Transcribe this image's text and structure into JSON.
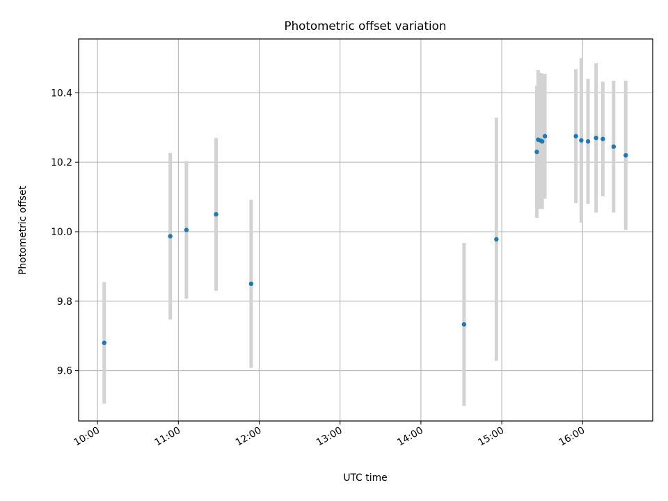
{
  "chart_data": {
    "type": "scatter",
    "title": "Photometric offset variation",
    "xlabel": "UTC time",
    "ylabel": "Photometric offset",
    "x_unit": "time of day (HH:MM)",
    "xlim": [
      "09:46",
      "16:52"
    ],
    "ylim": [
      9.455,
      10.555
    ],
    "grid": true,
    "x_ticks": [
      "10:00",
      "11:00",
      "12:00",
      "13:00",
      "14:00",
      "15:00",
      "16:00"
    ],
    "y_ticks": [
      "9.6",
      "9.8",
      "10.0",
      "10.2",
      "10.4"
    ],
    "point_color": "#1f77b4",
    "errorbar_color": "#d3d3d3",
    "points": [
      {
        "x": "10:05",
        "y": 9.68,
        "err": 0.175
      },
      {
        "x": "10:54",
        "y": 9.987,
        "err": 0.24
      },
      {
        "x": "11:06",
        "y": 10.005,
        "err": 0.198
      },
      {
        "x": "11:28",
        "y": 10.05,
        "err": 0.22
      },
      {
        "x": "11:54",
        "y": 9.85,
        "err": 0.242
      },
      {
        "x": "14:32",
        "y": 9.733,
        "err": 0.235
      },
      {
        "x": "14:56",
        "y": 9.978,
        "err": 0.35
      },
      {
        "x": "15:26",
        "y": 10.23,
        "err": 0.19
      },
      {
        "x": "15:27",
        "y": 10.265,
        "err": 0.2
      },
      {
        "x": "15:29",
        "y": 10.262,
        "err": 0.195
      },
      {
        "x": "15:30",
        "y": 10.26,
        "err": 0.195
      },
      {
        "x": "15:32",
        "y": 10.275,
        "err": 0.18
      },
      {
        "x": "15:55",
        "y": 10.275,
        "err": 0.193
      },
      {
        "x": "15:59",
        "y": 10.263,
        "err": 0.237
      },
      {
        "x": "16:04",
        "y": 10.26,
        "err": 0.18
      },
      {
        "x": "16:10",
        "y": 10.27,
        "err": 0.215
      },
      {
        "x": "16:15",
        "y": 10.267,
        "err": 0.165
      },
      {
        "x": "16:23",
        "y": 10.245,
        "err": 0.19
      },
      {
        "x": "16:32",
        "y": 10.22,
        "err": 0.215
      }
    ]
  }
}
